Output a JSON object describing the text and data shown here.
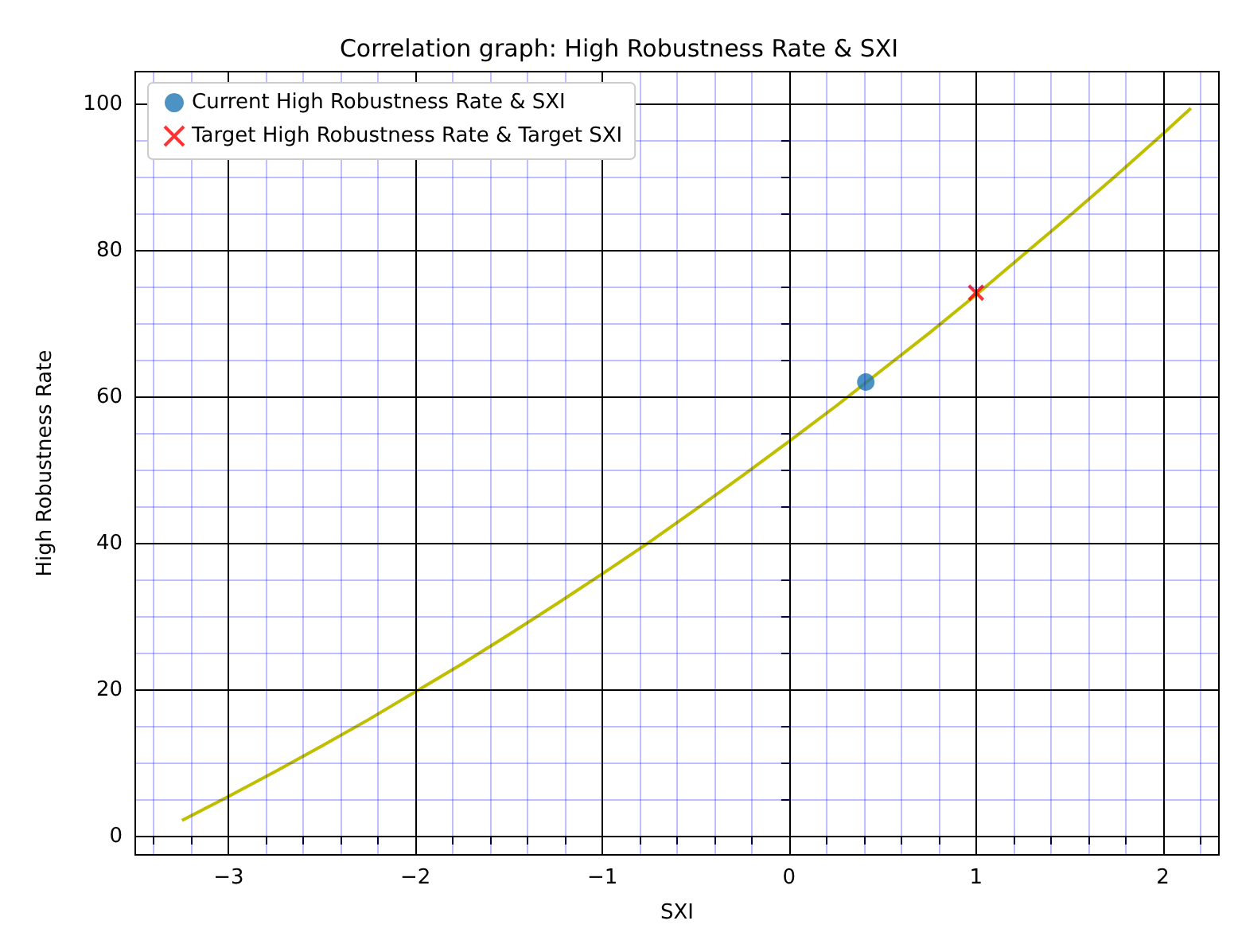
{
  "chart_data": {
    "type": "line",
    "title": "Correlation graph: High Robustness Rate & SXI",
    "xlabel": "SXI",
    "ylabel": "High Robustness Rate",
    "xlim": [
      -3.5,
      2.3
    ],
    "ylim": [
      -2.5,
      104.5
    ],
    "xticks": [
      {
        "value": -3.4,
        "label": null
      },
      {
        "value": -3.2,
        "label": null
      },
      {
        "value": -3,
        "label": "−3"
      },
      {
        "value": -2.8,
        "label": null
      },
      {
        "value": -2.6,
        "label": null
      },
      {
        "value": -2.4,
        "label": null
      },
      {
        "value": -2.2,
        "label": null
      },
      {
        "value": -2,
        "label": "−2"
      },
      {
        "value": -1.8,
        "label": null
      },
      {
        "value": -1.6,
        "label": null
      },
      {
        "value": -1.4,
        "label": null
      },
      {
        "value": -1.2,
        "label": null
      },
      {
        "value": -1,
        "label": "−1"
      },
      {
        "value": -0.8,
        "label": null
      },
      {
        "value": -0.6,
        "label": null
      },
      {
        "value": -0.4,
        "label": null
      },
      {
        "value": -0.2,
        "label": null
      },
      0,
      {
        "value": 0.2,
        "label": null
      },
      {
        "value": 0.4,
        "label": null
      },
      {
        "value": 0.6,
        "label": null
      },
      {
        "value": 0.8,
        "label": null
      },
      1,
      {
        "value": 1.2,
        "label": null
      },
      {
        "value": 1.4,
        "label": null
      },
      {
        "value": 1.6,
        "label": null
      },
      {
        "value": 1.8,
        "label": null
      },
      2,
      {
        "value": 2.2,
        "label": null
      }
    ],
    "yticks": [
      0,
      {
        "value": 5,
        "label": null
      },
      {
        "value": 10,
        "label": null
      },
      {
        "value": 15,
        "label": null
      },
      20,
      {
        "value": 25,
        "label": null
      },
      {
        "value": 30,
        "label": null
      },
      {
        "value": 35,
        "label": null
      },
      40,
      {
        "value": 45,
        "label": null
      },
      {
        "value": 50,
        "label": null
      },
      {
        "value": 55,
        "label": null
      },
      60,
      {
        "value": 65,
        "label": null
      },
      {
        "value": 70,
        "label": null
      },
      {
        "value": 75,
        "label": null
      },
      80,
      {
        "value": 85,
        "label": null
      },
      {
        "value": 90,
        "label": null
      },
      {
        "value": 95,
        "label": null
      },
      100
    ],
    "grid": true,
    "legend": "top left",
    "series": [
      {
        "color": "#bfbf00",
        "marker": "none",
        "x": [
          -3.25,
          -3,
          -2.75,
          -2.5,
          -2.25,
          -2,
          -1.75,
          -1.5,
          -1.25,
          -1,
          -0.75,
          -0.5,
          -0.25,
          0,
          0.25,
          0.5,
          0.75,
          1,
          1.25,
          1.5,
          1.75,
          2,
          2.15
        ],
        "values": [
          2.2,
          5.5,
          8.9,
          12.4,
          16.0,
          19.8,
          23.6,
          27.6,
          31.7,
          35.9,
          40.2,
          44.7,
          49.3,
          54,
          58.8,
          63.8,
          68.8,
          74.0,
          79.4,
          84.8,
          90.3,
          96.0,
          99.5
        ]
      },
      {
        "type": "scatter",
        "name": "Current High Robustness Rate & SXI",
        "color": "#1f77b4",
        "marker": "circle",
        "x": [
          0.41
        ],
        "values": [
          62.1
        ]
      },
      {
        "type": "scatter",
        "name": "Target High Robustness Rate & Target SXI",
        "color": "#ff0000",
        "marker": "cross",
        "x": [
          1.0
        ],
        "values": [
          74.3
        ]
      }
    ]
  }
}
